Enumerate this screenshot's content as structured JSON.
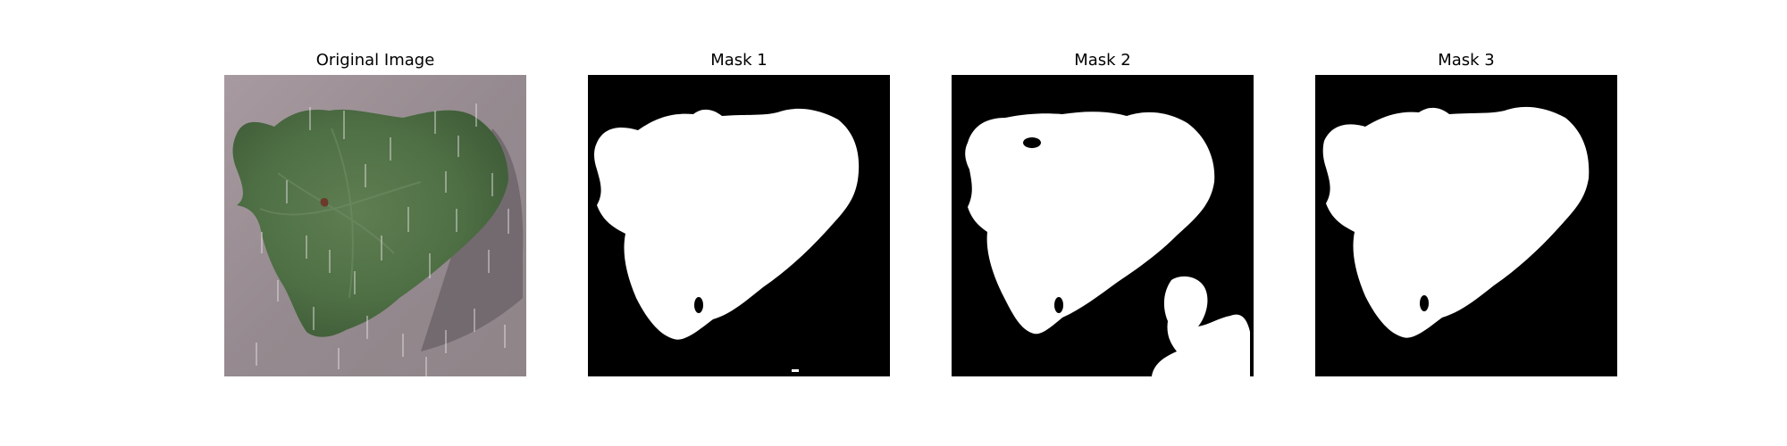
{
  "figure": {
    "panels": [
      {
        "title": "Original Image",
        "kind": "photo"
      },
      {
        "title": "Mask 1",
        "kind": "mask"
      },
      {
        "title": "Mask 2",
        "kind": "mask"
      },
      {
        "title": "Mask 3",
        "kind": "mask"
      }
    ]
  },
  "colors": {
    "background": "#ffffff",
    "mask_fg": "#ffffff",
    "mask_bg": "#000000",
    "leaf": "#4f7043",
    "ground": "#9a8d92"
  }
}
